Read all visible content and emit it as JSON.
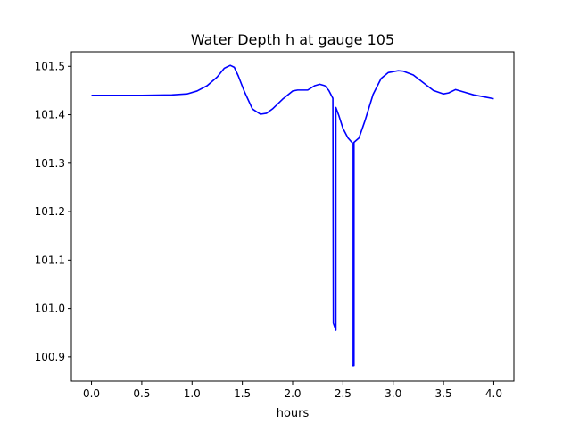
{
  "chart_data": {
    "type": "line",
    "title": "Water Depth h at gauge 105",
    "xlabel": "hours",
    "ylabel": "",
    "xlim": [
      -0.2,
      4.2
    ],
    "ylim": [
      100.85,
      101.53
    ],
    "xticks": [
      0.0,
      0.5,
      1.0,
      1.5,
      2.0,
      2.5,
      3.0,
      3.5,
      4.0
    ],
    "xtick_labels": [
      "0.0",
      "0.5",
      "1.0",
      "1.5",
      "2.0",
      "2.5",
      "3.0",
      "3.5",
      "4.0"
    ],
    "yticks": [
      100.9,
      101.0,
      101.1,
      101.2,
      101.3,
      101.4,
      101.5
    ],
    "ytick_labels": [
      "100.9",
      "101.0",
      "101.1",
      "101.2",
      "101.3",
      "101.4",
      "101.5"
    ],
    "grid": false,
    "legend": "none",
    "series": [
      {
        "color": "#0000ff",
        "x": [
          0.0,
          0.5,
          0.8,
          0.95,
          1.05,
          1.15,
          1.25,
          1.32,
          1.38,
          1.42,
          1.46,
          1.52,
          1.6,
          1.68,
          1.74,
          1.8,
          1.9,
          2.0,
          2.05,
          2.15,
          2.22,
          2.27,
          2.32,
          2.36,
          2.4,
          2.405,
          2.43,
          2.43,
          2.46,
          2.5,
          2.55,
          2.58,
          2.595,
          2.595,
          2.61,
          2.61,
          2.66,
          2.72,
          2.8,
          2.88,
          2.95,
          3.05,
          3.1,
          3.2,
          3.3,
          3.4,
          3.5,
          3.55,
          3.62,
          3.7,
          3.8,
          3.9,
          4.0
        ],
        "y": [
          101.44,
          101.44,
          101.441,
          101.443,
          101.449,
          101.46,
          101.478,
          101.496,
          101.502,
          101.498,
          101.48,
          101.448,
          101.412,
          101.401,
          101.403,
          101.412,
          101.432,
          101.449,
          101.451,
          101.451,
          101.46,
          101.463,
          101.46,
          101.45,
          101.434,
          100.97,
          100.955,
          101.415,
          101.398,
          101.372,
          101.352,
          101.345,
          101.342,
          100.882,
          100.882,
          101.343,
          101.352,
          101.388,
          101.442,
          101.475,
          101.487,
          101.491,
          101.49,
          101.482,
          101.466,
          101.45,
          101.443,
          101.445,
          101.452,
          101.447,
          101.441,
          101.437,
          101.433
        ]
      }
    ]
  }
}
